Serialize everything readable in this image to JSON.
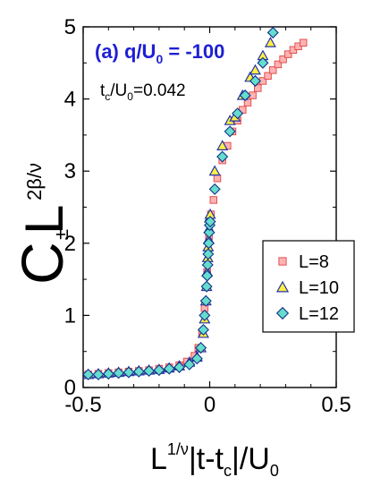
{
  "chart_data": {
    "type": "scatter",
    "annotation_main": "(a) q/U",
    "annotation_main_sub": "0",
    "annotation_main_rest": " = -100",
    "annotation_tc": "t",
    "annotation_tc_sub1": "c",
    "annotation_tc_mid": "/U",
    "annotation_tc_sub2": "0",
    "annotation_tc_rest": "=0.042",
    "ylabel_main": "C",
    "ylabel_sub": "±",
    "ylabel_L": "L",
    "ylabel_sup": "2β/ν",
    "xlabel_L": "L",
    "xlabel_sup": "1/ν",
    "xlabel_mid": "|t-t",
    "xlabel_sub1": "c",
    "xlabel_mid2": "|/U",
    "xlabel_sub2": "0",
    "xlim": [
      -0.5,
      0.5
    ],
    "ylim": [
      0,
      5
    ],
    "xticks": [
      -0.5,
      0,
      0.5
    ],
    "xtick_labels": [
      "-0.5",
      "0",
      "0.5"
    ],
    "yticks": [
      0,
      1,
      2,
      3,
      4,
      5
    ],
    "ytick_labels": [
      "0",
      "1",
      "2",
      "3",
      "4",
      "5"
    ],
    "legend_position": "right",
    "series": [
      {
        "name": "L=8",
        "marker": "square",
        "fill": "#ffb3b3",
        "stroke": "#e05050",
        "x": [
          -0.48,
          -0.44,
          -0.4,
          -0.36,
          -0.32,
          -0.28,
          -0.24,
          -0.2,
          -0.16,
          -0.12,
          -0.09,
          -0.06,
          -0.045,
          -0.03,
          -0.02,
          -0.01,
          -0.003,
          0.005,
          0.015,
          0.03,
          0.05,
          0.07,
          0.09,
          0.11,
          0.13,
          0.15,
          0.17,
          0.19,
          0.21,
          0.23,
          0.25,
          0.27,
          0.29,
          0.31,
          0.33,
          0.35,
          0.37
        ],
        "y": [
          0.18,
          0.19,
          0.2,
          0.21,
          0.22,
          0.23,
          0.24,
          0.26,
          0.28,
          0.31,
          0.36,
          0.44,
          0.55,
          0.75,
          1.1,
          1.6,
          2.1,
          2.4,
          2.6,
          2.9,
          3.15,
          3.35,
          3.55,
          3.7,
          3.85,
          3.95,
          4.05,
          4.15,
          4.25,
          4.32,
          4.4,
          4.48,
          4.55,
          4.62,
          4.68,
          4.73,
          4.78
        ]
      },
      {
        "name": "L=10",
        "marker": "triangle",
        "fill": "#ffee44",
        "stroke": "#2233aa",
        "x": [
          -0.48,
          -0.44,
          -0.4,
          -0.36,
          -0.32,
          -0.28,
          -0.24,
          -0.2,
          -0.16,
          -0.12,
          -0.08,
          -0.05,
          -0.035,
          -0.025,
          -0.02,
          -0.015,
          -0.012,
          -0.01,
          -0.008,
          -0.006,
          -0.004,
          -0.002,
          0.0,
          0.002,
          0.02,
          0.05,
          0.08,
          0.1,
          0.13,
          0.16,
          0.18,
          0.21,
          0.24
        ],
        "y": [
          0.18,
          0.19,
          0.2,
          0.21,
          0.22,
          0.23,
          0.24,
          0.25,
          0.27,
          0.3,
          0.35,
          0.42,
          0.55,
          0.75,
          0.95,
          1.2,
          1.4,
          1.6,
          1.8,
          1.95,
          2.05,
          2.2,
          2.35,
          2.4,
          3.0,
          3.35,
          3.7,
          3.75,
          4.05,
          4.3,
          4.4,
          4.6,
          4.78
        ]
      },
      {
        "name": "L=12",
        "marker": "diamond",
        "fill": "#66ddcc",
        "stroke": "#113388",
        "x": [
          -0.48,
          -0.44,
          -0.4,
          -0.36,
          -0.32,
          -0.28,
          -0.24,
          -0.2,
          -0.16,
          -0.12,
          -0.08,
          -0.05,
          -0.035,
          -0.025,
          -0.02,
          -0.015,
          -0.012,
          -0.01,
          -0.008,
          -0.006,
          -0.004,
          -0.002,
          0.0,
          0.002,
          0.02,
          0.05,
          0.08,
          0.11,
          0.14,
          0.18,
          0.21,
          0.25
        ],
        "y": [
          0.18,
          0.18,
          0.19,
          0.2,
          0.21,
          0.22,
          0.23,
          0.24,
          0.26,
          0.28,
          0.32,
          0.4,
          0.55,
          0.8,
          1.0,
          1.2,
          1.4,
          1.55,
          1.7,
          1.85,
          2.0,
          2.15,
          2.25,
          2.3,
          2.75,
          3.2,
          3.55,
          3.8,
          4.05,
          4.25,
          4.5,
          4.92
        ]
      }
    ]
  }
}
